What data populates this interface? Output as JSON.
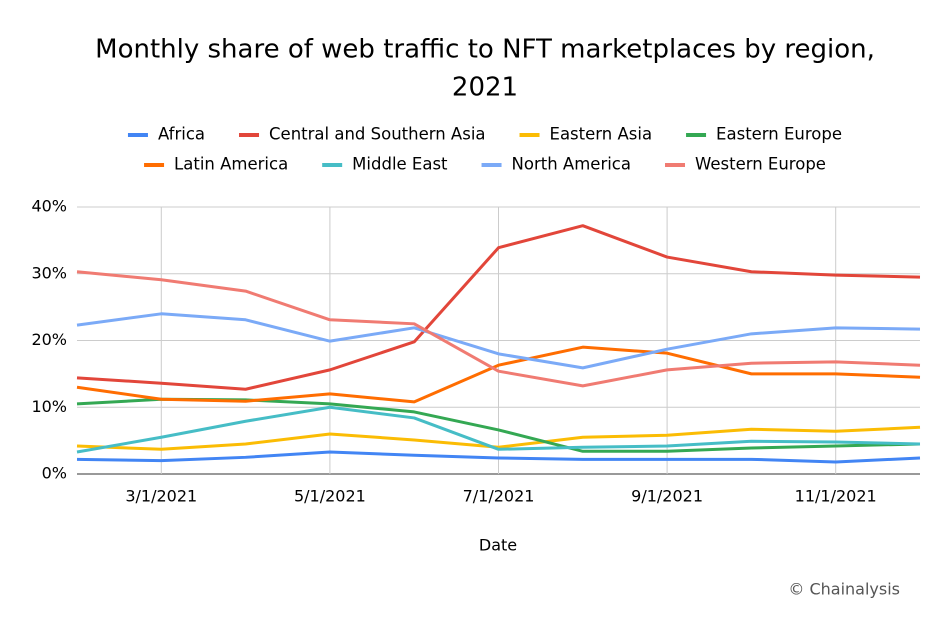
{
  "chart_data": {
    "type": "line",
    "title": "Monthly share of web traffic to NFT marketplaces by region,",
    "subtitle": "2021",
    "xlabel": "Date",
    "source": "© Chainalysis",
    "categories": [
      null,
      "3/1/2021",
      null,
      "5/1/2021",
      null,
      "7/1/2021",
      null,
      "9/1/2021",
      null,
      "11/1/2021",
      null
    ],
    "ylim": [
      0,
      40
    ],
    "yticks": [
      {
        "value": 0,
        "label": "0%"
      },
      {
        "value": 10,
        "label": "10%"
      },
      {
        "value": 20,
        "label": "20%"
      },
      {
        "value": 30,
        "label": "30%"
      },
      {
        "value": 40,
        "label": "40%"
      }
    ],
    "grid": true,
    "series": [
      {
        "name": "Africa",
        "color": "#4285f4",
        "values": [
          2.2,
          2.0,
          2.5,
          3.3,
          2.8,
          2.4,
          2.2,
          2.2,
          2.2,
          1.8,
          2.4
        ]
      },
      {
        "name": "Central and Southern Asia",
        "color": "#e2463a",
        "values": [
          14.4,
          13.6,
          12.7,
          15.6,
          19.8,
          33.9,
          37.2,
          32.5,
          30.3,
          29.8,
          29.5
        ]
      },
      {
        "name": "Eastern Asia",
        "color": "#fbbc04",
        "values": [
          4.2,
          3.7,
          4.5,
          6.0,
          5.1,
          4.0,
          5.5,
          5.8,
          6.7,
          6.4,
          7.0
        ]
      },
      {
        "name": "Eastern Europe",
        "color": "#34a853",
        "values": [
          10.5,
          11.2,
          11.1,
          10.5,
          9.3,
          6.6,
          3.4,
          3.4,
          3.9,
          4.2,
          4.5
        ]
      },
      {
        "name": "Latin America",
        "color": "#ff6d01",
        "values": [
          13.0,
          11.2,
          10.9,
          12.0,
          10.8,
          16.3,
          19.0,
          18.1,
          15.0,
          15.0,
          14.5
        ]
      },
      {
        "name": "Middle East",
        "color": "#46bdc6",
        "values": [
          3.3,
          5.5,
          7.9,
          10.0,
          8.4,
          3.7,
          4.0,
          4.2,
          4.9,
          4.8,
          4.5
        ]
      },
      {
        "name": "North America",
        "color": "#7baaf7",
        "values": [
          22.3,
          24.0,
          23.1,
          19.9,
          21.9,
          18.0,
          15.9,
          18.7,
          21.0,
          21.9,
          21.7
        ]
      },
      {
        "name": "Western Europe",
        "color": "#f07b72",
        "values": [
          30.3,
          29.1,
          27.4,
          23.1,
          22.5,
          15.4,
          13.2,
          15.6,
          16.6,
          16.8,
          16.3
        ]
      }
    ]
  }
}
